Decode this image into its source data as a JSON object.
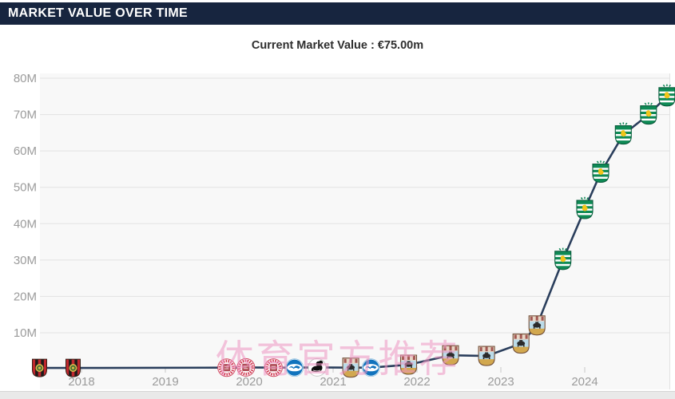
{
  "header": {
    "title": "MARKET VALUE OVER TIME",
    "background_color": "#17253f"
  },
  "subtitle": {
    "text": "Current Market Value : €75.00m"
  },
  "watermark": {
    "text": "体育官方推荐",
    "color": "#ee95c2"
  },
  "chart_data": {
    "type": "line",
    "title": "Current Market Value : €75.00m",
    "current_value": "€75.00m",
    "unit": "€ million",
    "grid": true,
    "line_color": "#2a3e5c",
    "plot_background": "#f8f8f8",
    "grid_color": "#e2e2e2",
    "tick_label_color": "#9b9b9b",
    "x_axis": {
      "ticks": [
        2018,
        2019,
        2020,
        2021,
        2022,
        2023,
        2024
      ],
      "labels": [
        "2018",
        "2019",
        "2020",
        "2021",
        "2022",
        "2023",
        "2024"
      ]
    },
    "y_axis": {
      "ticks": [
        10,
        20,
        30,
        40,
        50,
        60,
        70,
        80
      ],
      "labels": [
        "10M",
        "20M",
        "30M",
        "40M",
        "50M",
        "60M",
        "70M",
        "80M"
      ],
      "range": [
        0,
        80
      ]
    },
    "clubs": {
      "bromma": {
        "name": "IF Brommapojkarna",
        "colors": [
          "#c0272d",
          "#1d1b1a",
          "#d9b64a"
        ]
      },
      "stpauli": {
        "name": "FC St. Pauli",
        "colors": [
          "#cf3a52",
          "#ae4c57",
          "#ffffff"
        ]
      },
      "brighton": {
        "name": "Brighton & Hove Albion",
        "colors": [
          "#1173bd",
          "#ffffff"
        ]
      },
      "swansea": {
        "name": "Swansea City",
        "colors": [
          "#0b0b0b",
          "#ffffff"
        ]
      },
      "coventry": {
        "name": "Coventry City",
        "colors": [
          "#badbe9",
          "#d2a84f",
          "#a25752"
        ]
      },
      "sporting": {
        "name": "Sporting CP",
        "colors": [
          "#0e8a55",
          "#f2c519",
          "#ffffff"
        ]
      }
    },
    "points": [
      {
        "x": 2017.5,
        "value": 0.3,
        "club": "bromma"
      },
      {
        "x": 2017.9,
        "value": 0.3,
        "club": "bromma"
      },
      {
        "x": 2019.73,
        "value": 0.4,
        "club": "stpauli"
      },
      {
        "x": 2019.96,
        "value": 0.45,
        "club": "stpauli"
      },
      {
        "x": 2020.29,
        "value": 0.4,
        "club": "stpauli"
      },
      {
        "x": 2020.54,
        "value": 0.4,
        "club": "brighton"
      },
      {
        "x": 2020.81,
        "value": 0.45,
        "club": "swansea"
      },
      {
        "x": 2021.21,
        "value": 0.4,
        "club": "coventry"
      },
      {
        "x": 2021.45,
        "value": 0.4,
        "club": "brighton"
      },
      {
        "x": 2021.9,
        "value": 1.2,
        "club": "coventry"
      },
      {
        "x": 2022.4,
        "value": 3.8,
        "club": "coventry"
      },
      {
        "x": 2022.83,
        "value": 3.6,
        "club": "coventry"
      },
      {
        "x": 2023.24,
        "value": 7,
        "club": "coventry"
      },
      {
        "x": 2023.43,
        "value": 12,
        "club": "coventry"
      },
      {
        "x": 2023.74,
        "value": 30,
        "club": "sporting"
      },
      {
        "x": 2024.0,
        "value": 44,
        "club": "sporting"
      },
      {
        "x": 2024.19,
        "value": 54,
        "club": "sporting"
      },
      {
        "x": 2024.46,
        "value": 64.5,
        "club": "sporting"
      },
      {
        "x": 2024.76,
        "value": 70,
        "club": "sporting"
      },
      {
        "x": 2024.98,
        "value": 75,
        "club": "sporting"
      }
    ]
  }
}
